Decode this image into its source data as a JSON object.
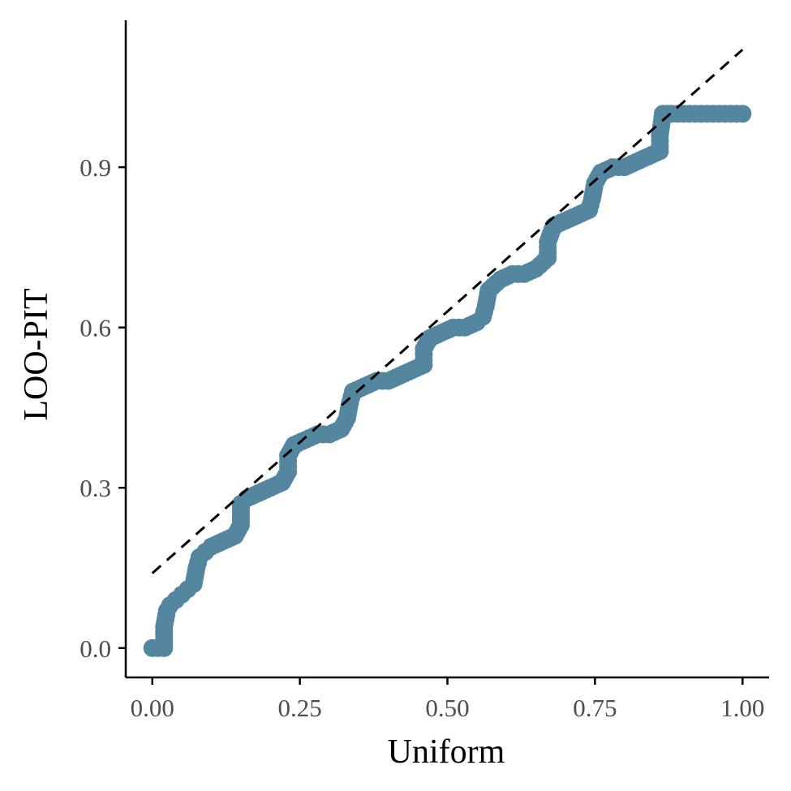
{
  "chart_data": {
    "type": "scatter",
    "title": "",
    "xlabel": "Uniform",
    "ylabel": "LOO-PIT",
    "xlim": [
      -0.045,
      1.045
    ],
    "ylim": [
      -0.055,
      1.175
    ],
    "x_ticks": [
      0.0,
      0.25,
      0.5,
      0.75,
      1.0
    ],
    "x_tick_labels": [
      "0.00",
      "0.25",
      "0.50",
      "0.75",
      "1.00"
    ],
    "y_ticks": [
      0.0,
      0.3,
      0.6,
      0.9
    ],
    "y_tick_labels": [
      "0.0",
      "0.3",
      "0.6",
      "0.9"
    ],
    "grid": false,
    "point_color": "#54879f",
    "reference_line": {
      "style": "dashed",
      "color": "#000000",
      "points": [
        [
          0.0,
          0.14
        ],
        [
          1.0,
          1.12
        ]
      ]
    },
    "series": [
      {
        "points": [
          [
            0.0,
            0.0
          ],
          [
            0.01,
            0.0
          ],
          [
            0.02,
            0.0
          ],
          [
            0.02,
            0.04
          ],
          [
            0.025,
            0.07
          ],
          [
            0.03,
            0.08
          ],
          [
            0.04,
            0.09
          ],
          [
            0.05,
            0.1
          ],
          [
            0.06,
            0.11
          ],
          [
            0.07,
            0.12
          ],
          [
            0.075,
            0.15
          ],
          [
            0.08,
            0.17
          ],
          [
            0.09,
            0.18
          ],
          [
            0.1,
            0.19
          ],
          [
            0.12,
            0.2
          ],
          [
            0.14,
            0.21
          ],
          [
            0.15,
            0.23
          ],
          [
            0.15,
            0.27
          ],
          [
            0.16,
            0.28
          ],
          [
            0.18,
            0.29
          ],
          [
            0.2,
            0.3
          ],
          [
            0.22,
            0.31
          ],
          [
            0.23,
            0.33
          ],
          [
            0.23,
            0.36
          ],
          [
            0.24,
            0.38
          ],
          [
            0.26,
            0.39
          ],
          [
            0.28,
            0.4
          ],
          [
            0.3,
            0.4
          ],
          [
            0.32,
            0.41
          ],
          [
            0.33,
            0.43
          ],
          [
            0.335,
            0.46
          ],
          [
            0.34,
            0.48
          ],
          [
            0.36,
            0.49
          ],
          [
            0.38,
            0.5
          ],
          [
            0.4,
            0.5
          ],
          [
            0.42,
            0.51
          ],
          [
            0.44,
            0.52
          ],
          [
            0.46,
            0.53
          ],
          [
            0.46,
            0.56
          ],
          [
            0.47,
            0.58
          ],
          [
            0.49,
            0.59
          ],
          [
            0.51,
            0.6
          ],
          [
            0.53,
            0.6
          ],
          [
            0.55,
            0.61
          ],
          [
            0.56,
            0.62
          ],
          [
            0.565,
            0.64
          ],
          [
            0.57,
            0.67
          ],
          [
            0.59,
            0.69
          ],
          [
            0.61,
            0.7
          ],
          [
            0.63,
            0.7
          ],
          [
            0.65,
            0.71
          ],
          [
            0.67,
            0.73
          ],
          [
            0.67,
            0.76
          ],
          [
            0.68,
            0.79
          ],
          [
            0.7,
            0.8
          ],
          [
            0.72,
            0.81
          ],
          [
            0.74,
            0.82
          ],
          [
            0.745,
            0.84
          ],
          [
            0.75,
            0.87
          ],
          [
            0.76,
            0.89
          ],
          [
            0.78,
            0.9
          ],
          [
            0.8,
            0.9
          ],
          [
            0.82,
            0.91
          ],
          [
            0.84,
            0.92
          ],
          [
            0.86,
            0.93
          ],
          [
            0.86,
            0.96
          ],
          [
            0.865,
            1.0
          ],
          [
            0.88,
            1.0
          ],
          [
            0.9,
            1.0
          ],
          [
            0.92,
            1.0
          ],
          [
            0.94,
            1.0
          ],
          [
            0.96,
            1.0
          ],
          [
            0.98,
            1.0
          ],
          [
            1.0,
            1.0
          ]
        ]
      }
    ]
  }
}
